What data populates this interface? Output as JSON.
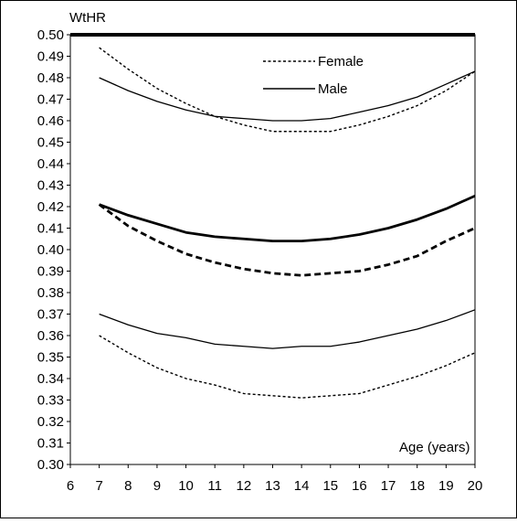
{
  "chart_data": {
    "type": "line",
    "title": "",
    "ylabel": "WtHR",
    "xlabel": "Age (years)",
    "xlim": [
      6,
      20
    ],
    "ylim": [
      0.3,
      0.5
    ],
    "x_ticks": [
      6,
      7,
      8,
      9,
      10,
      11,
      12,
      13,
      14,
      15,
      16,
      17,
      18,
      19,
      20
    ],
    "y_ticks": [
      0.3,
      0.31,
      0.32,
      0.33,
      0.34,
      0.35,
      0.36,
      0.37,
      0.38,
      0.39,
      0.4,
      0.41,
      0.42,
      0.43,
      0.44,
      0.45,
      0.46,
      0.47,
      0.48,
      0.49,
      0.5
    ],
    "y_tick_labels": [
      "0.30",
      "0.31",
      "0.32",
      "0.33",
      "0.34",
      "0.35",
      "0.36",
      "0.37",
      "0.38",
      "0.39",
      "0.40",
      "0.41",
      "0.42",
      "0.43",
      "0.44",
      "0.45",
      "0.46",
      "0.47",
      "0.48",
      "0.49",
      "0.50"
    ],
    "grid": false,
    "legend": {
      "placement": "top-center",
      "entries": [
        {
          "name": "Female",
          "style": "dotted"
        },
        {
          "name": "Male",
          "style": "solid"
        }
      ]
    },
    "series": [
      {
        "name": "Female",
        "style": "dotted",
        "weight": "thin",
        "x": [
          7,
          8,
          9,
          10,
          11,
          12,
          13,
          14,
          15,
          16,
          17,
          18,
          19,
          20
        ],
        "values": [
          0.494,
          0.484,
          0.475,
          0.468,
          0.462,
          0.458,
          0.455,
          0.455,
          0.455,
          0.458,
          0.462,
          0.467,
          0.474,
          0.483
        ]
      },
      {
        "name": "Male",
        "style": "solid",
        "weight": "thin",
        "x": [
          7,
          8,
          9,
          10,
          11,
          12,
          13,
          14,
          15,
          16,
          17,
          18,
          19,
          20
        ],
        "values": [
          0.48,
          0.474,
          0.469,
          0.465,
          0.462,
          0.461,
          0.46,
          0.46,
          0.461,
          0.464,
          0.467,
          0.471,
          0.477,
          0.483
        ]
      },
      {
        "name": "Male",
        "style": "solid",
        "weight": "thick",
        "x": [
          7,
          8,
          9,
          10,
          11,
          12,
          13,
          14,
          15,
          16,
          17,
          18,
          19,
          20
        ],
        "values": [
          0.421,
          0.416,
          0.412,
          0.408,
          0.406,
          0.405,
          0.404,
          0.404,
          0.405,
          0.407,
          0.41,
          0.414,
          0.419,
          0.425
        ]
      },
      {
        "name": "Female",
        "style": "dashed",
        "weight": "thick",
        "x": [
          7,
          8,
          9,
          10,
          11,
          12,
          13,
          14,
          15,
          16,
          17,
          18,
          19,
          20
        ],
        "values": [
          0.421,
          0.411,
          0.404,
          0.398,
          0.394,
          0.391,
          0.389,
          0.388,
          0.389,
          0.39,
          0.393,
          0.397,
          0.404,
          0.41
        ]
      },
      {
        "name": "Male",
        "style": "solid",
        "weight": "thin",
        "x": [
          7,
          8,
          9,
          10,
          11,
          12,
          13,
          14,
          15,
          16,
          17,
          18,
          19,
          20
        ],
        "values": [
          0.37,
          0.365,
          0.361,
          0.359,
          0.356,
          0.355,
          0.354,
          0.355,
          0.355,
          0.357,
          0.36,
          0.363,
          0.367,
          0.372
        ]
      },
      {
        "name": "Female",
        "style": "dotted",
        "weight": "thin",
        "x": [
          7,
          8,
          9,
          10,
          11,
          12,
          13,
          14,
          15,
          16,
          17,
          18,
          19,
          20
        ],
        "values": [
          0.36,
          0.352,
          0.345,
          0.34,
          0.337,
          0.333,
          0.332,
          0.331,
          0.332,
          0.333,
          0.337,
          0.341,
          0.346,
          0.352
        ]
      }
    ],
    "reference_line": {
      "y": 0.5,
      "style": "solid",
      "weight": "very-thick"
    }
  }
}
